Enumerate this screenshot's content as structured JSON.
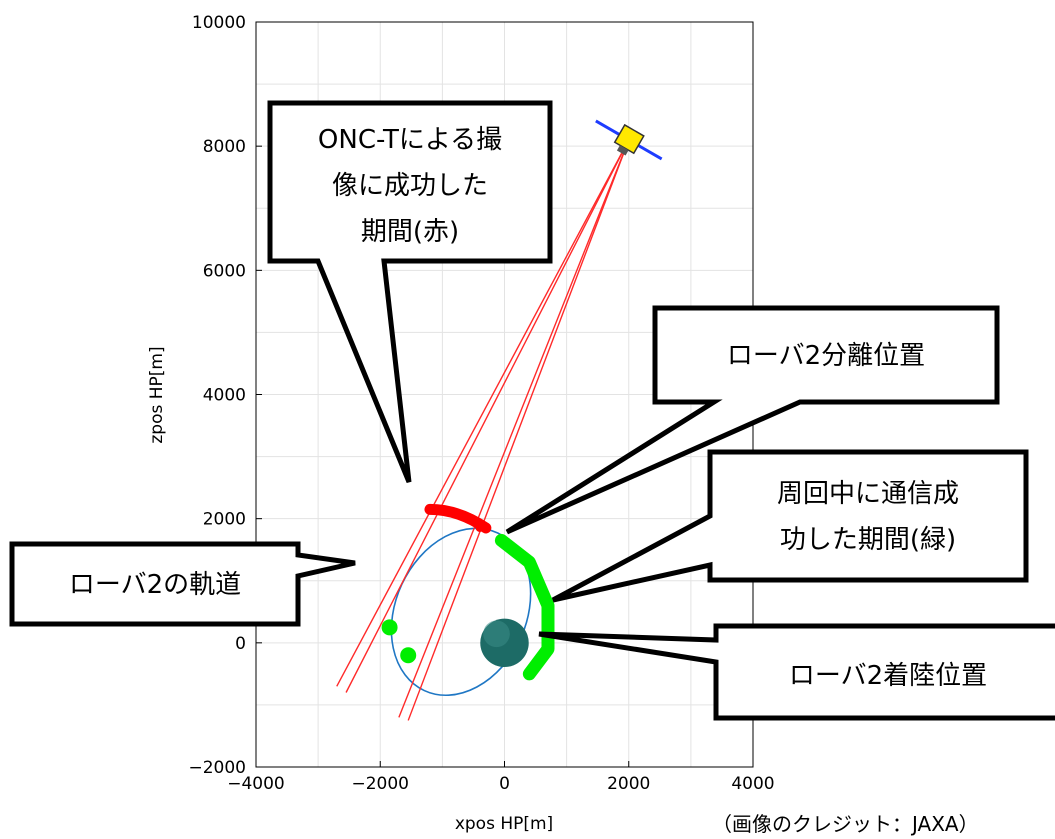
{
  "chart_data": {
    "type": "line",
    "xlabel": "xpos HP[m]",
    "ylabel": "zpos HP[m]",
    "xlim": [
      -4000,
      4000
    ],
    "ylim": [
      -2000,
      10000
    ],
    "xticks": [
      "−4000",
      "−2000",
      "0",
      "2000",
      "4000"
    ],
    "yticks": [
      "−2000",
      "0",
      "2000",
      "4000",
      "6000",
      "8000",
      "10000"
    ],
    "grid": true,
    "orbit": {
      "center": [
        -700,
        500
      ],
      "rx": 1050,
      "ry": 1400,
      "tilt_deg": 25,
      "color": "#1f77c4"
    },
    "spacecraft_position": [
      2000,
      8100
    ],
    "asteroid": {
      "center": [
        0,
        0
      ],
      "radius": 390,
      "color": "#1d6b66"
    },
    "camera_rays": [
      {
        "to": [
          -2700,
          -700
        ]
      },
      {
        "to": [
          -2550,
          -800
        ]
      },
      {
        "to": [
          -1700,
          -1200
        ]
      },
      {
        "to": [
          -1550,
          -1250
        ]
      }
    ],
    "red_arc": {
      "from": [
        -1200,
        2150
      ],
      "to": [
        -300,
        1850
      ],
      "color": "#ff0000"
    },
    "green_arc": {
      "points": [
        [
          -50,
          1650
        ],
        [
          400,
          1300
        ],
        [
          700,
          600
        ],
        [
          700,
          -100
        ],
        [
          400,
          -500
        ]
      ],
      "color": "#00ee00"
    },
    "green_dots": [
      [
        -1850,
        250
      ],
      [
        -1550,
        -200
      ]
    ],
    "red_marker": [
      -400,
      1850
    ],
    "annotations": [
      "ONC-Tによる撮像に成功した期間(赤)",
      "ローバ2分離位置",
      "周回中に通信成功した期間(緑)",
      "ローバ2の軌道",
      "ローバ2着陸位置"
    ]
  },
  "callouts": {
    "onc": [
      "ONC-Tによる撮",
      "像に成功した",
      "期間(赤)"
    ],
    "separation": [
      "ローバ2分離位置"
    ],
    "comm": [
      "周回中に通信成",
      "功した期間(緑)"
    ],
    "orbit": [
      "ローバ2の軌道"
    ],
    "landing": [
      "ローバ2着陸位置"
    ]
  },
  "credit": "（画像のクレジット：JAXA）"
}
